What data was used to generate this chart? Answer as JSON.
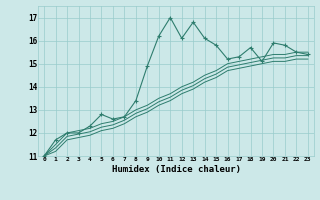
{
  "xlabel": "Humidex (Indice chaleur)",
  "bg_color": "#cce8e8",
  "grid_color": "#99cccc",
  "line_color": "#2e7d6e",
  "xlim": [
    -0.5,
    23.5
  ],
  "ylim": [
    11,
    17.5
  ],
  "yticks": [
    11,
    12,
    13,
    14,
    15,
    16,
    17
  ],
  "xticks": [
    0,
    1,
    2,
    3,
    4,
    5,
    6,
    7,
    8,
    9,
    10,
    11,
    12,
    13,
    14,
    15,
    16,
    17,
    18,
    19,
    20,
    21,
    22,
    23
  ],
  "series1": [
    11.0,
    11.7,
    12.0,
    12.0,
    12.3,
    12.8,
    12.6,
    12.7,
    13.4,
    14.9,
    16.2,
    17.0,
    16.1,
    16.8,
    16.1,
    15.8,
    15.2,
    15.3,
    15.7,
    15.1,
    15.9,
    15.8,
    15.5,
    15.4
  ],
  "series2": [
    11.0,
    11.5,
    12.0,
    12.1,
    12.2,
    12.4,
    12.5,
    12.7,
    13.0,
    13.2,
    13.5,
    13.7,
    14.0,
    14.2,
    14.5,
    14.7,
    15.0,
    15.1,
    15.2,
    15.3,
    15.4,
    15.4,
    15.5,
    15.5
  ],
  "series3": [
    11.0,
    11.35,
    11.85,
    11.95,
    12.05,
    12.25,
    12.35,
    12.55,
    12.85,
    13.05,
    13.35,
    13.55,
    13.85,
    14.05,
    14.35,
    14.55,
    14.85,
    14.95,
    15.05,
    15.15,
    15.25,
    15.25,
    15.35,
    15.35
  ],
  "series4": [
    11.0,
    11.2,
    11.7,
    11.8,
    11.9,
    12.1,
    12.2,
    12.4,
    12.7,
    12.9,
    13.2,
    13.4,
    13.7,
    13.9,
    14.2,
    14.4,
    14.7,
    14.8,
    14.9,
    15.0,
    15.1,
    15.1,
    15.2,
    15.2
  ]
}
